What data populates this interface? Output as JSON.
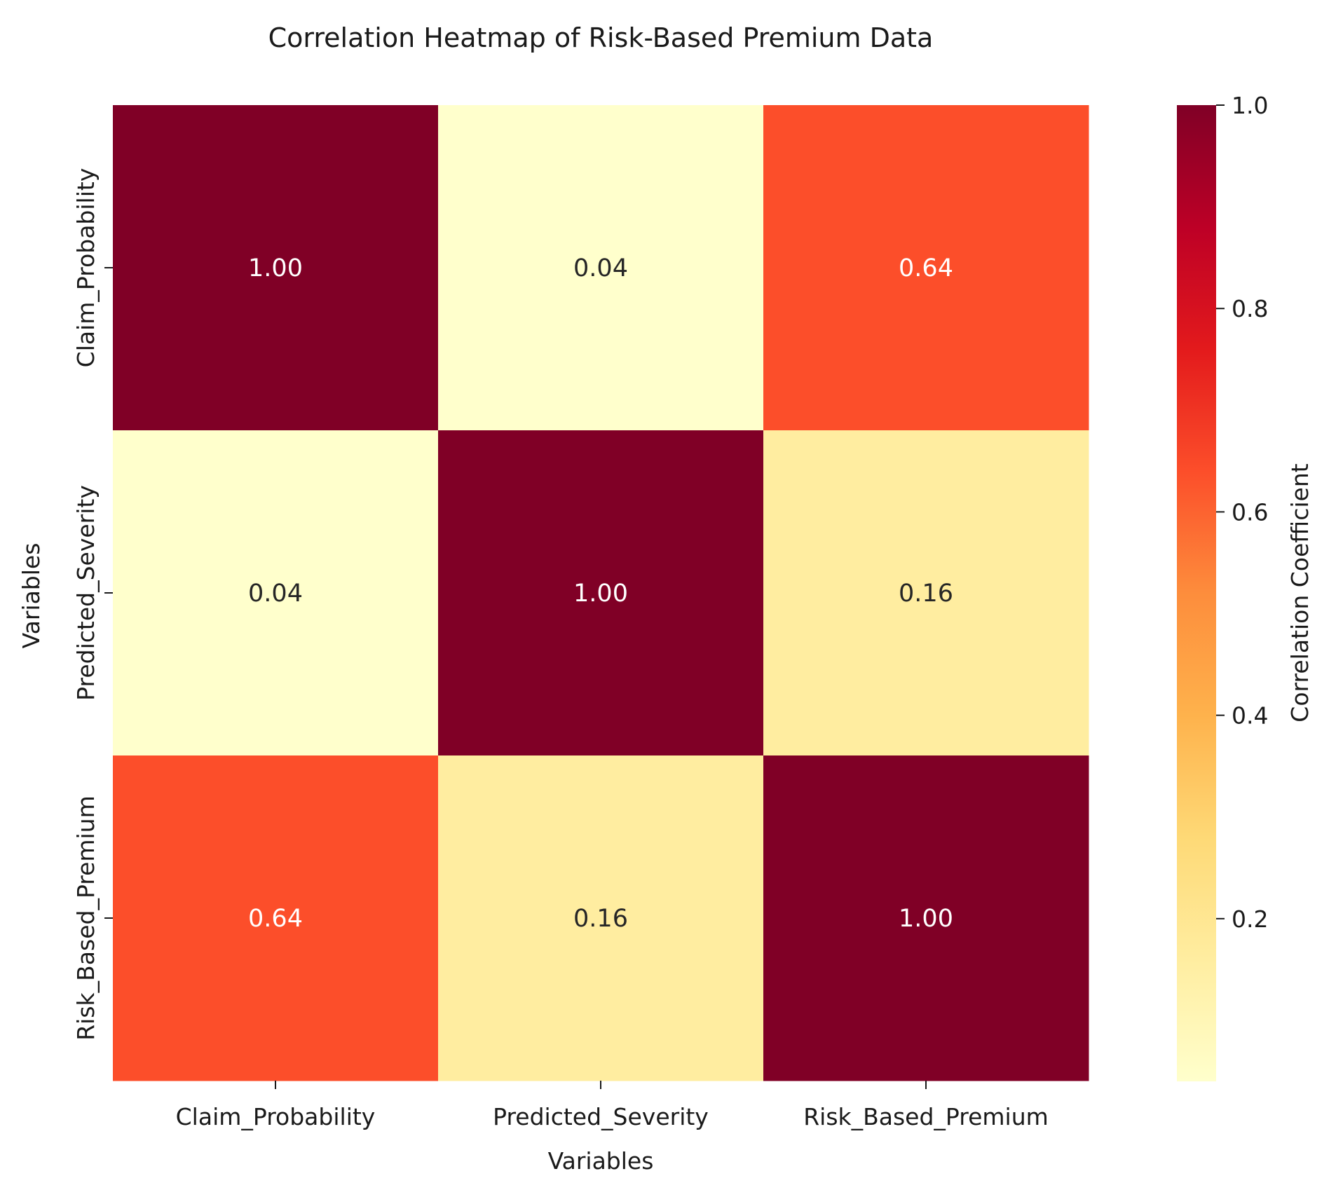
{
  "chart_data": {
    "type": "heatmap",
    "title": "Correlation Heatmap of Risk-Based Premium Data",
    "xlabel": "Variables",
    "ylabel": "Variables",
    "x_categories": [
      "Claim_Probability",
      "Predicted_Severity",
      "Risk_Based_Premium"
    ],
    "y_categories": [
      "Claim_Probability",
      "Predicted_Severity",
      "Risk_Based_Premium"
    ],
    "cell_labels": [
      [
        "1.00",
        "0.04",
        "0.64"
      ],
      [
        "0.04",
        "1.00",
        "0.16"
      ],
      [
        "0.64",
        "0.16",
        "1.00"
      ]
    ],
    "values": [
      [
        1.0,
        0.04,
        0.64
      ],
      [
        0.04,
        1.0,
        0.16
      ],
      [
        0.64,
        0.16,
        1.0
      ]
    ],
    "colorbar": {
      "label": "Correlation Coefficient",
      "range": [
        0.04,
        1.0
      ],
      "ticks": [
        "0.2",
        "0.4",
        "0.6",
        "0.8",
        "1.0"
      ],
      "colormap": "YlOrRd"
    },
    "grid": false
  }
}
